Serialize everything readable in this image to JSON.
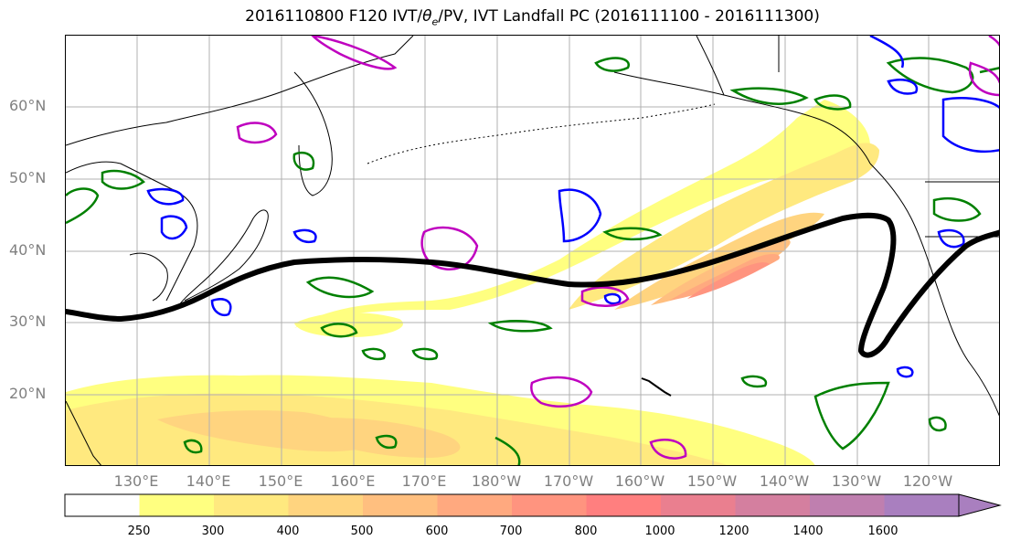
{
  "title": {
    "prefix": "2016110800 F120 IVT/",
    "theta": "θ",
    "sub": "e",
    "suffix": "/PV, IVT Landfall PC (2016111100 - 2016111300)"
  },
  "map": {
    "projection": "Plate Carree",
    "lon_range": [
      "120°E",
      "115°W"
    ],
    "lat_range": [
      "10°N",
      "70°N"
    ],
    "gridlines": true,
    "lat_labels": [
      "60°N",
      "50°N",
      "40°N",
      "30°N",
      "20°N"
    ],
    "lon_labels": [
      "130°E",
      "140°E",
      "150°E",
      "160°E",
      "170°E",
      "180°W",
      "170°W",
      "160°W",
      "150°W",
      "140°W",
      "130°W",
      "120°W"
    ]
  },
  "colorbar": {
    "levels": [
      "250",
      "300",
      "400",
      "500",
      "600",
      "700",
      "800",
      "1000",
      "1200",
      "1400",
      "1600"
    ],
    "colors": [
      "#ffffff",
      "#ffff80",
      "#ffe97f",
      "#ffd47f",
      "#ffbf7f",
      "#ffa97f",
      "#ff947f",
      "#ff7f7f",
      "#ea7f8f",
      "#d47f9f",
      "#bf7faf",
      "#a97fbf"
    ],
    "extend": "max"
  },
  "overlays": {
    "ivt_fill": "yellow-orange-red shaded IVT",
    "theta_e_contour_color": "#008000",
    "pv_contour_color": "#0000ff",
    "other_contour_color": "#bf00bf",
    "landfall_line_color": "#000000"
  }
}
